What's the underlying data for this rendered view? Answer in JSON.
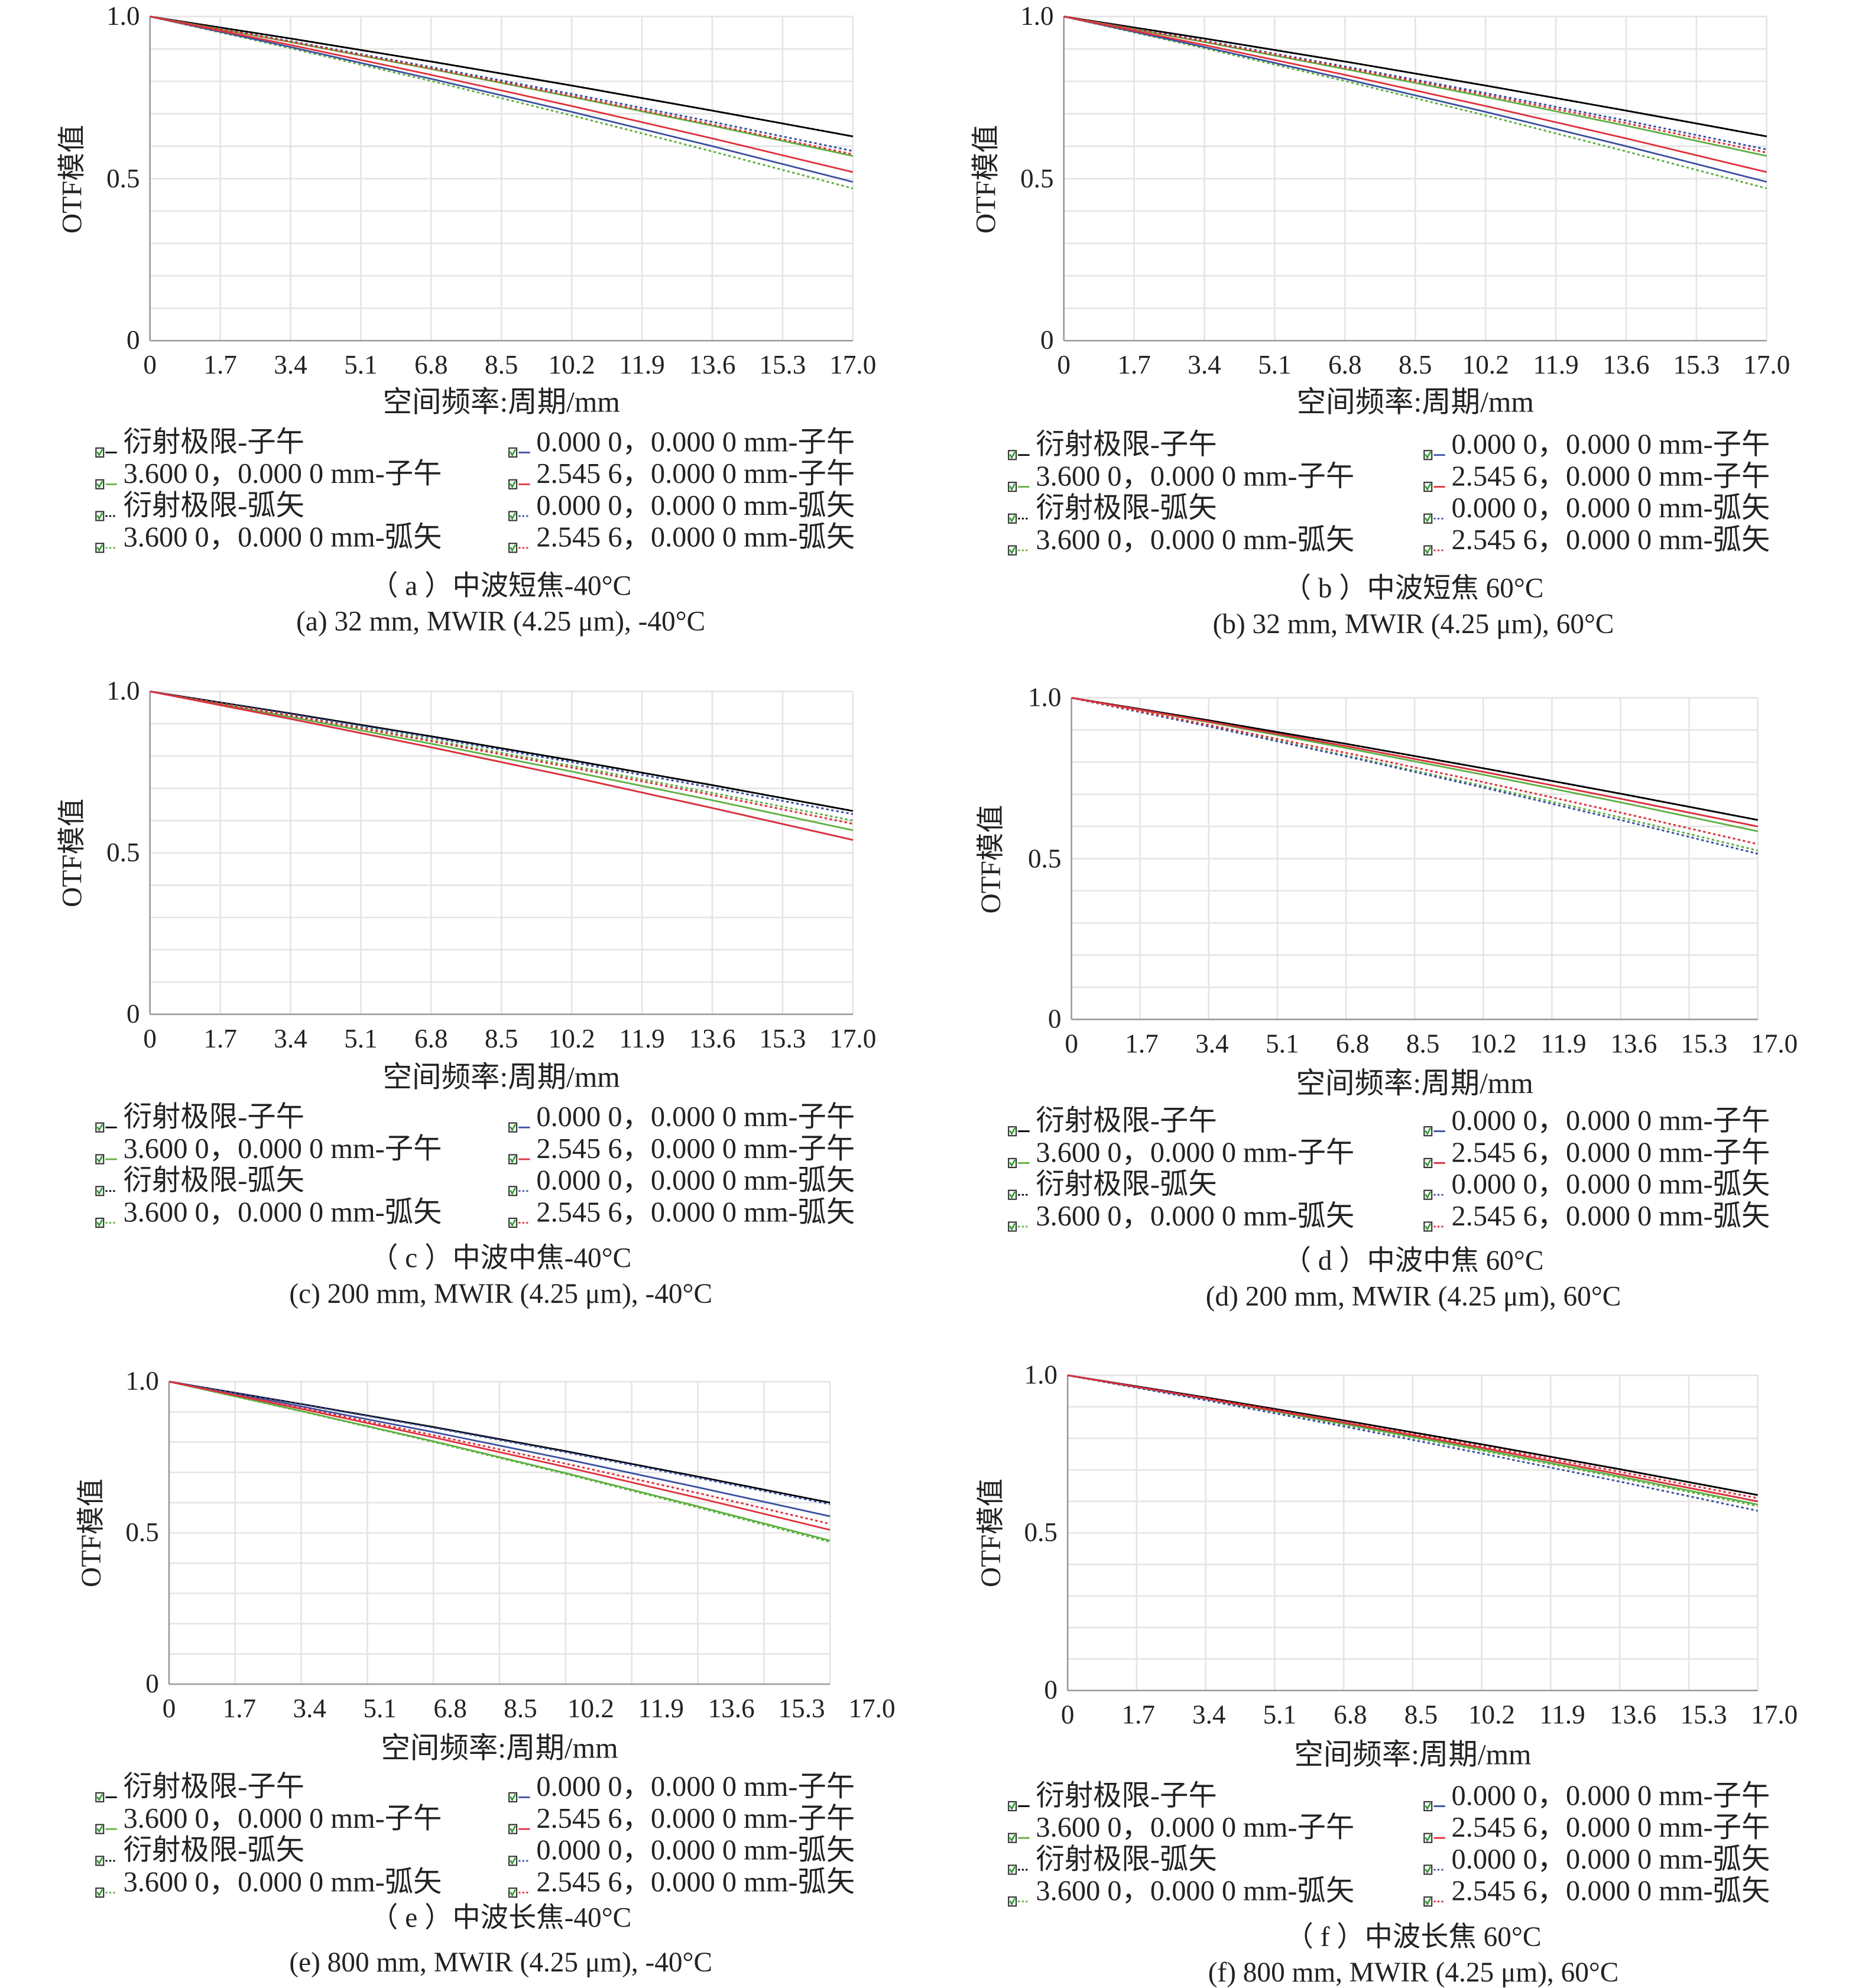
{
  "chart_data": [
    {
      "id": "a",
      "type": "line",
      "title_cn": "（ a ）中波短焦-40°C",
      "title_en": "(a) 32 mm, MWIR (4.25 μm), -40°C",
      "xlabel": "空间频率:周期/mm",
      "ylabel": "OTF模值",
      "xticks": [
        "0",
        "1.7",
        "3.4",
        "5.1",
        "6.8",
        "8.5",
        "10.2",
        "11.9",
        "13.6",
        "15.3",
        "17.0"
      ],
      "yticks": [
        "0",
        "0.5",
        "1.0"
      ],
      "xlim": [
        0,
        17
      ],
      "ylim": [
        0,
        1
      ],
      "grid": true,
      "legend_position": "bottom",
      "x": [
        0,
        3.4,
        6.8,
        10.2,
        13.6,
        17
      ],
      "series": [
        {
          "name": "衍射极限-子午",
          "color": "#000000",
          "style": "solid",
          "values": [
            1,
            0.932,
            0.861,
            0.787,
            0.71,
            0.63
          ]
        },
        {
          "name": "3.600 0，0.000 0 mm-子午",
          "color": "#5cb040",
          "style": "solid",
          "values": [
            1,
            0.921,
            0.838,
            0.752,
            0.663,
            0.57
          ]
        },
        {
          "name": "衍射极限-弧矢",
          "color": "#000000",
          "style": "dotted",
          "values": [
            1,
            0.932,
            0.861,
            0.787,
            0.71,
            0.63
          ]
        },
        {
          "name": "3.600 0，0.000 0 mm-弧矢",
          "color": "#5cb040",
          "style": "dotted",
          "values": [
            1,
            0.902,
            0.801,
            0.695,
            0.584,
            0.47
          ]
        },
        {
          "name": "0.000 0，0.000 0 mm-子午",
          "color": "#3a4fa0",
          "style": "solid",
          "values": [
            1,
            0.906,
            0.808,
            0.706,
            0.6,
            0.49
          ]
        },
        {
          "name": "2.545 6，0.000 0 mm-子午",
          "color": "#e0303a",
          "style": "solid",
          "values": [
            1,
            0.912,
            0.82,
            0.724,
            0.624,
            0.52
          ]
        },
        {
          "name": "0.000 0，0.000 0 mm-弧矢",
          "color": "#3a4fa0",
          "style": "dotted",
          "values": [
            1,
            0.924,
            0.844,
            0.761,
            0.675,
            0.585
          ]
        },
        {
          "name": "2.545 6，0.000 0 mm-弧矢",
          "color": "#e0303a",
          "style": "dotted",
          "values": [
            1,
            0.922,
            0.84,
            0.755,
            0.667,
            0.575
          ]
        }
      ]
    },
    {
      "id": "b",
      "type": "line",
      "title_cn": "（ b ）中波短焦 60°C",
      "title_en": "(b) 32 mm, MWIR (4.25 μm), 60°C",
      "xlabel": "空间频率:周期/mm",
      "ylabel": "OTF模值",
      "xticks": [
        "0",
        "1.7",
        "3.4",
        "5.1",
        "6.8",
        "8.5",
        "10.2",
        "11.9",
        "13.6",
        "15.3",
        "17.0"
      ],
      "yticks": [
        "0",
        "0.5",
        "1.0"
      ],
      "xlim": [
        0,
        17
      ],
      "ylim": [
        0,
        1
      ],
      "grid": true,
      "legend_position": "bottom",
      "x": [
        0,
        3.4,
        6.8,
        10.2,
        13.6,
        17
      ],
      "series": [
        {
          "name": "衍射极限-子午",
          "color": "#000000",
          "style": "solid",
          "values": [
            1,
            0.932,
            0.861,
            0.787,
            0.71,
            0.63
          ]
        },
        {
          "name": "3.600 0，0.000 0 mm-子午",
          "color": "#5cb040",
          "style": "solid",
          "values": [
            1,
            0.921,
            0.838,
            0.752,
            0.663,
            0.57
          ]
        },
        {
          "name": "衍射极限-弧矢",
          "color": "#000000",
          "style": "dotted",
          "values": [
            1,
            0.932,
            0.861,
            0.787,
            0.71,
            0.63
          ]
        },
        {
          "name": "3.600 0，0.000 0 mm-弧矢",
          "color": "#5cb040",
          "style": "dotted",
          "values": [
            1,
            0.902,
            0.801,
            0.695,
            0.584,
            0.47
          ]
        },
        {
          "name": "0.000 0，0.000 0 mm-子午",
          "color": "#3a4fa0",
          "style": "solid",
          "values": [
            1,
            0.906,
            0.808,
            0.706,
            0.6,
            0.49
          ]
        },
        {
          "name": "2.545 6，0.000 0 mm-子午",
          "color": "#e0303a",
          "style": "solid",
          "values": [
            1,
            0.912,
            0.82,
            0.724,
            0.624,
            0.52
          ]
        },
        {
          "name": "0.000 0，0.000 0 mm-弧矢",
          "color": "#3a4fa0",
          "style": "dotted",
          "values": [
            1,
            0.925,
            0.846,
            0.764,
            0.679,
            0.59
          ]
        },
        {
          "name": "2.545 6，0.000 0 mm-弧矢",
          "color": "#e0303a",
          "style": "dotted",
          "values": [
            1,
            0.923,
            0.842,
            0.758,
            0.671,
            0.58
          ]
        }
      ]
    },
    {
      "id": "c",
      "type": "line",
      "title_cn": "（ c ）中波中焦-40°C",
      "title_en": "(c) 200 mm, MWIR (4.25 μm), -40°C",
      "xlabel": "空间频率:周期/mm",
      "ylabel": "OTF模值",
      "xticks": [
        "0",
        "1.7",
        "3.4",
        "5.1",
        "6.8",
        "8.5",
        "10.2",
        "11.9",
        "13.6",
        "15.3",
        "17.0"
      ],
      "yticks": [
        "0",
        "0.5",
        "1.0"
      ],
      "xlim": [
        0,
        17
      ],
      "ylim": [
        0,
        1
      ],
      "grid": true,
      "legend_position": "bottom",
      "x": [
        0,
        3.4,
        6.8,
        10.2,
        13.6,
        17
      ],
      "series": [
        {
          "name": "衍射极限-子午",
          "color": "#000000",
          "style": "solid",
          "values": [
            1,
            0.932,
            0.861,
            0.787,
            0.71,
            0.63
          ]
        },
        {
          "name": "3.600 0，0.000 0 mm-子午",
          "color": "#5cb040",
          "style": "solid",
          "values": [
            1,
            0.921,
            0.838,
            0.752,
            0.663,
            0.57
          ]
        },
        {
          "name": "衍射极限-弧矢",
          "color": "#000000",
          "style": "dotted",
          "values": [
            1,
            0.932,
            0.861,
            0.787,
            0.71,
            0.63
          ]
        },
        {
          "name": "3.600 0，0.000 0 mm-弧矢",
          "color": "#5cb040",
          "style": "dotted",
          "values": [
            1,
            0.926,
            0.85,
            0.77,
            0.686,
            0.6
          ]
        },
        {
          "name": "0.000 0，0.000 0 mm-子午",
          "color": "#3a4fa0",
          "style": "solid",
          "values": [
            1,
            0.915,
            0.827,
            0.735,
            0.639,
            0.54
          ]
        },
        {
          "name": "2.545 6，0.000 0 mm-子午",
          "color": "#e0303a",
          "style": "solid",
          "values": [
            1,
            0.915,
            0.827,
            0.735,
            0.639,
            0.54
          ]
        },
        {
          "name": "0.000 0，0.000 0 mm-弧矢",
          "color": "#3a4fa0",
          "style": "dotted",
          "values": [
            1,
            0.93,
            0.857,
            0.781,
            0.702,
            0.62
          ]
        },
        {
          "name": "2.545 6，0.000 0 mm-弧矢",
          "color": "#e0303a",
          "style": "dotted",
          "values": [
            1,
            0.925,
            0.846,
            0.764,
            0.679,
            0.59
          ]
        }
      ]
    },
    {
      "id": "d",
      "type": "line",
      "title_cn": "（ d ）中波中焦 60°C",
      "title_en": "(d) 200 mm, MWIR (4.25 μm), 60°C",
      "xlabel": "空间频率:周期/mm",
      "ylabel": "OTF模值",
      "xticks": [
        "0",
        "1.7",
        "3.4",
        "5.1",
        "6.8",
        "8.5",
        "10.2",
        "11.9",
        "13.6",
        "15.3",
        "17.0"
      ],
      "yticks": [
        "0",
        "0.5",
        "1.0"
      ],
      "xlim": [
        0,
        17
      ],
      "ylim": [
        0,
        1
      ],
      "grid": true,
      "legend_position": "bottom",
      "x": [
        0,
        3.4,
        6.8,
        10.2,
        13.6,
        17
      ],
      "series": [
        {
          "name": "衍射极限-子午",
          "color": "#000000",
          "style": "solid",
          "values": [
            1,
            0.93,
            0.857,
            0.781,
            0.702,
            0.62
          ]
        },
        {
          "name": "3.600 0，0.000 0 mm-子午",
          "color": "#5cb040",
          "style": "solid",
          "values": [
            1,
            0.924,
            0.844,
            0.761,
            0.675,
            0.585
          ]
        },
        {
          "name": "衍射极限-弧矢",
          "color": "#000000",
          "style": "dotted",
          "values": [
            1,
            0.93,
            0.857,
            0.781,
            0.702,
            0.62
          ]
        },
        {
          "name": "3.600 0，0.000 0 mm-弧矢",
          "color": "#5cb040",
          "style": "dotted",
          "values": [
            1,
            0.913,
            0.821,
            0.726,
            0.628,
            0.525
          ]
        },
        {
          "name": "0.000 0，0.000 0 mm-子午",
          "color": "#3a4fa0",
          "style": "solid",
          "values": [
            1,
            0.926,
            0.85,
            0.77,
            0.686,
            0.6
          ]
        },
        {
          "name": "2.545 6，0.000 0 mm-子午",
          "color": "#e0303a",
          "style": "solid",
          "values": [
            1,
            0.926,
            0.85,
            0.77,
            0.686,
            0.6
          ]
        },
        {
          "name": "0.000 0，0.000 0 mm-弧矢",
          "color": "#3a4fa0",
          "style": "dotted",
          "values": [
            1,
            0.911,
            0.818,
            0.721,
            0.62,
            0.515
          ]
        },
        {
          "name": "2.545 6，0.000 0 mm-弧矢",
          "color": "#e0303a",
          "style": "dotted",
          "values": [
            1,
            0.916,
            0.829,
            0.738,
            0.643,
            0.545
          ]
        }
      ]
    },
    {
      "id": "e",
      "type": "line",
      "title_cn": "（ e ）中波长焦-40°C",
      "title_en": "(e) 800 mm, MWIR (4.25 μm), -40°C",
      "xlabel": "空间频率:周期/mm",
      "ylabel": "OTF模值",
      "xticks": [
        "0",
        "1.7",
        "3.4",
        "5.1",
        "6.8",
        "8.5",
        "10.2",
        "11.9",
        "13.6",
        "15.3",
        "17.0"
      ],
      "yticks": [
        "0",
        "0.5",
        "1.0"
      ],
      "xlim": [
        0,
        17
      ],
      "ylim": [
        0,
        1
      ],
      "grid": true,
      "legend_position": "bottom",
      "x": [
        0,
        3.4,
        6.8,
        10.2,
        13.6,
        17
      ],
      "series": [
        {
          "name": "衍射极限-子午",
          "color": "#000000",
          "style": "solid",
          "values": [
            1,
            0.926,
            0.85,
            0.77,
            0.686,
            0.6
          ]
        },
        {
          "name": "3.600 0，0.000 0 mm-子午",
          "color": "#5cb040",
          "style": "solid",
          "values": [
            1,
            0.903,
            0.803,
            0.698,
            0.588,
            0.475
          ]
        },
        {
          "name": "衍射极限-弧矢",
          "color": "#000000",
          "style": "dotted",
          "values": [
            1,
            0.926,
            0.85,
            0.77,
            0.686,
            0.6
          ]
        },
        {
          "name": "3.600 0，0.000 0 mm-弧矢",
          "color": "#5cb040",
          "style": "dotted",
          "values": [
            1,
            0.902,
            0.801,
            0.695,
            0.584,
            0.47
          ]
        },
        {
          "name": "0.000 0，0.000 0 mm-子午",
          "color": "#3a4fa0",
          "style": "solid",
          "values": [
            1,
            0.918,
            0.833,
            0.744,
            0.651,
            0.555
          ]
        },
        {
          "name": "2.545 6，0.000 0 mm-子午",
          "color": "#e0303a",
          "style": "solid",
          "values": [
            1,
            0.91,
            0.816,
            0.718,
            0.616,
            0.51
          ]
        },
        {
          "name": "0.000 0，0.000 0 mm-弧矢",
          "color": "#3a4fa0",
          "style": "dotted",
          "values": [
            1,
            0.925,
            0.848,
            0.767,
            0.682,
            0.595
          ]
        },
        {
          "name": "2.545 6，0.000 0 mm-弧矢",
          "color": "#e0303a",
          "style": "dotted",
          "values": [
            1,
            0.914,
            0.823,
            0.729,
            0.632,
            0.53
          ]
        }
      ]
    },
    {
      "id": "f",
      "type": "line",
      "title_cn": "（ f ）中波长焦 60°C",
      "title_en": "(f) 800 mm, MWIR (4.25 μm), 60°C",
      "xlabel": "空间频率:周期/mm",
      "ylabel": "OTF模值",
      "xticks": [
        "0",
        "1.7",
        "3.4",
        "5.1",
        "6.8",
        "8.5",
        "10.2",
        "11.9",
        "13.6",
        "15.3",
        "17.0"
      ],
      "yticks": [
        "0",
        "0.5",
        "1.0"
      ],
      "xlim": [
        0,
        17
      ],
      "ylim": [
        0,
        1
      ],
      "grid": true,
      "legend_position": "bottom",
      "x": [
        0,
        3.4,
        6.8,
        10.2,
        13.6,
        17
      ],
      "series": [
        {
          "name": "衍射极限-子午",
          "color": "#000000",
          "style": "solid",
          "values": [
            1,
            0.93,
            0.857,
            0.781,
            0.702,
            0.62
          ]
        },
        {
          "name": "3.600 0，0.000 0 mm-子午",
          "color": "#5cb040",
          "style": "solid",
          "values": [
            1,
            0.925,
            0.846,
            0.764,
            0.679,
            0.59
          ]
        },
        {
          "name": "衍射极限-弧矢",
          "color": "#000000",
          "style": "dotted",
          "values": [
            1,
            0.93,
            0.857,
            0.781,
            0.702,
            0.62
          ]
        },
        {
          "name": "3.600 0，0.000 0 mm-弧矢",
          "color": "#5cb040",
          "style": "dotted",
          "values": [
            1,
            0.924,
            0.844,
            0.761,
            0.675,
            0.585
          ]
        },
        {
          "name": "0.000 0，0.000 0 mm-子午",
          "color": "#3a4fa0",
          "style": "solid",
          "values": [
            1,
            0.926,
            0.85,
            0.77,
            0.686,
            0.6
          ]
        },
        {
          "name": "2.545 6，0.000 0 mm-子午",
          "color": "#e0303a",
          "style": "solid",
          "values": [
            1,
            0.926,
            0.85,
            0.77,
            0.686,
            0.6
          ]
        },
        {
          "name": "0.000 0，0.000 0 mm-弧矢",
          "color": "#3a4fa0",
          "style": "dotted",
          "values": [
            1,
            0.921,
            0.838,
            0.752,
            0.663,
            0.57
          ]
        },
        {
          "name": "2.545 6，0.000 0 mm-弧矢",
          "color": "#e0303a",
          "style": "dotted",
          "values": [
            1,
            0.928,
            0.853,
            0.775,
            0.694,
            0.61
          ]
        }
      ]
    }
  ]
}
